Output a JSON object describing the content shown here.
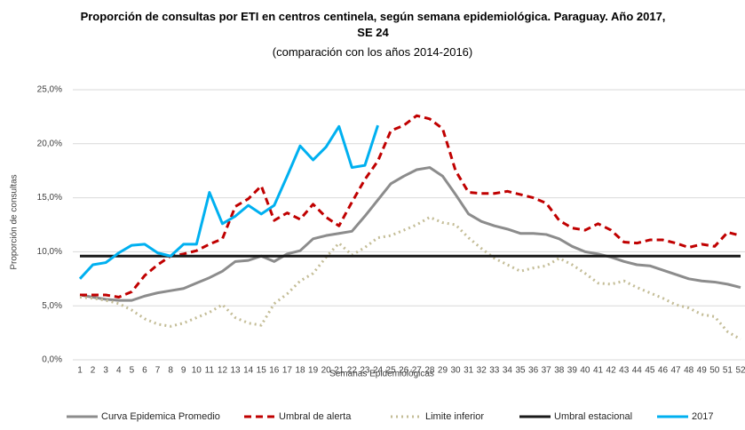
{
  "chart_data": {
    "type": "line",
    "title": "Proporción de consultas por ETI en centros centinela, según semana epidemiológica. Paraguay.  Año 2017, SE 24",
    "subtitle": "(comparación con los años 2014-2016)",
    "x_label": "Semanas Epidemiológicas",
    "y_label": "Proporción de consultas",
    "categories": [
      "1",
      "2",
      "3",
      "4",
      "5",
      "6",
      "7",
      "8",
      "9",
      "10",
      "11",
      "12",
      "13",
      "14",
      "15",
      "16",
      "17",
      "18",
      "19",
      "20",
      "21",
      "22",
      "23",
      "24",
      "25",
      "26",
      "27",
      "28",
      "29",
      "30",
      "31",
      "32",
      "33",
      "34",
      "35",
      "36",
      "37",
      "38",
      "39",
      "40",
      "41",
      "42",
      "43",
      "44",
      "45",
      "46",
      "47",
      "48",
      "49",
      "50",
      "51",
      "52"
    ],
    "ylim": [
      0,
      25
    ],
    "yticks": [
      {
        "value": 0,
        "label": "0,0%"
      },
      {
        "value": 5,
        "label": "5,0%"
      },
      {
        "value": 10,
        "label": "10,0%"
      },
      {
        "value": 15,
        "label": "15,0%"
      },
      {
        "value": 20,
        "label": "20,0%"
      },
      {
        "value": 25,
        "label": "25,0%"
      }
    ],
    "grid": true,
    "legend": "bottom",
    "series": [
      {
        "name": "Curva Epidemica Promedio",
        "color": "#8c8c8c",
        "style": "solid",
        "values": [
          6.0,
          5.8,
          5.6,
          5.5,
          5.5,
          5.9,
          6.2,
          6.4,
          6.6,
          7.1,
          7.6,
          8.2,
          9.1,
          9.2,
          9.6,
          9.1,
          9.8,
          10.1,
          11.2,
          11.5,
          11.7,
          11.9,
          13.3,
          14.8,
          16.3,
          17.0,
          17.6,
          17.8,
          17.0,
          15.3,
          13.5,
          12.8,
          12.4,
          12.1,
          11.7,
          11.7,
          11.6,
          11.2,
          10.5,
          10.0,
          9.8,
          9.5,
          9.1,
          8.8,
          8.7,
          8.3,
          7.9,
          7.5,
          7.3,
          7.2,
          7.0,
          6.7
        ]
      },
      {
        "name": "Umbral de alerta",
        "color": "#c00000",
        "style": "dashed",
        "values": [
          6.0,
          6.0,
          6.0,
          5.8,
          6.3,
          7.8,
          8.8,
          9.6,
          9.8,
          10.1,
          10.7,
          11.2,
          14.2,
          14.9,
          16.1,
          12.9,
          13.6,
          13.0,
          14.4,
          13.2,
          12.4,
          14.6,
          16.7,
          18.4,
          21.2,
          21.7,
          22.6,
          22.3,
          21.4,
          17.5,
          15.5,
          15.4,
          15.4,
          15.6,
          15.3,
          15.0,
          14.5,
          12.9,
          12.2,
          12.0,
          12.6,
          12.0,
          10.9,
          10.8,
          11.1,
          11.1,
          10.8,
          10.4,
          10.7,
          10.5,
          11.8,
          11.5
        ]
      },
      {
        "name": "Limite inferior",
        "color": "#c4bd97",
        "style": "dotted",
        "values": [
          5.8,
          5.7,
          5.5,
          5.2,
          4.6,
          3.8,
          3.3,
          3.1,
          3.4,
          3.9,
          4.4,
          5.1,
          3.9,
          3.4,
          3.2,
          5.2,
          6.1,
          7.3,
          8.0,
          9.5,
          10.8,
          9.7,
          10.4,
          11.3,
          11.5,
          12.0,
          12.5,
          13.2,
          12.7,
          12.5,
          11.3,
          10.3,
          9.4,
          8.8,
          8.2,
          8.5,
          8.7,
          9.4,
          8.8,
          8.0,
          7.1,
          7.0,
          7.3,
          6.7,
          6.2,
          5.7,
          5.1,
          4.8,
          4.2,
          4.0,
          2.6,
          1.9
        ]
      },
      {
        "name": "Umbral estacional",
        "color": "#1a1a1a",
        "style": "solid",
        "values": [
          9.6,
          9.6,
          9.6,
          9.6,
          9.6,
          9.6,
          9.6,
          9.6,
          9.6,
          9.6,
          9.6,
          9.6,
          9.6,
          9.6,
          9.6,
          9.6,
          9.6,
          9.6,
          9.6,
          9.6,
          9.6,
          9.6,
          9.6,
          9.6,
          9.6,
          9.6,
          9.6,
          9.6,
          9.6,
          9.6,
          9.6,
          9.6,
          9.6,
          9.6,
          9.6,
          9.6,
          9.6,
          9.6,
          9.6,
          9.6,
          9.6,
          9.6,
          9.6,
          9.6,
          9.6,
          9.6,
          9.6,
          9.6,
          9.6,
          9.6,
          9.6,
          9.6
        ]
      },
      {
        "name": "2017",
        "color": "#00b0f0",
        "style": "solid",
        "values": [
          7.5,
          8.8,
          9.0,
          9.9,
          10.6,
          10.7,
          9.9,
          9.6,
          10.7,
          10.7,
          15.5,
          12.6,
          13.3,
          14.3,
          13.5,
          14.3,
          17.0,
          19.8,
          18.5,
          19.7,
          21.6,
          17.8,
          18.0,
          21.7,
          null,
          null,
          null,
          null,
          null,
          null,
          null,
          null,
          null,
          null,
          null,
          null,
          null,
          null,
          null,
          null,
          null,
          null,
          null,
          null,
          null,
          null,
          null,
          null,
          null,
          null,
          null,
          null
        ]
      }
    ]
  }
}
